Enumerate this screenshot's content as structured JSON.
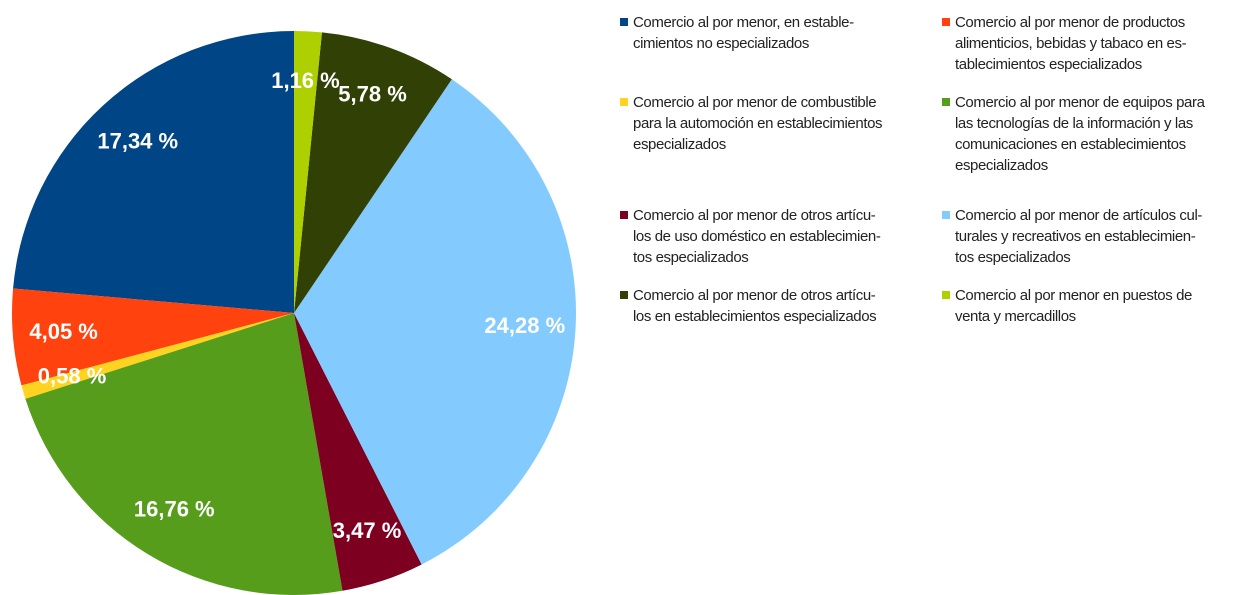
{
  "chart_data": {
    "type": "pie",
    "categories": [
      "Comercio al por menor, en estable-\ncimientos no especializados",
      "Comercio al por menor de productos\nalimenticios, bebidas y tabaco en es-\ntablecimientos especializados",
      "Comercio al por menor de combustible\npara la automoción en establecimientos\nespecializados",
      "Comercio al por menor de equipos para\nlas tecnologías de la información y las\ncomunicaciones en establecimientos\nespecializados",
      "Comercio al por menor de otros artícu-\nlos de uso doméstico en establecimien-\ntos especializados",
      "Comercio al por menor de artículos cul-\nturales y recreativos en establecimien-\ntos especializados",
      "Comercio al por menor de otros artícu-\nlos en establecimientos especializados",
      "Comercio al por menor en puestos de\nventa y mercadillos"
    ],
    "values": [
      17.34,
      4.05,
      0.58,
      16.76,
      3.47,
      24.28,
      5.78,
      1.16
    ],
    "value_labels": [
      "17,34 %",
      "4,05 %",
      "0,58 %",
      "16,76 %",
      "3,47 %",
      "24,28 %",
      "5,78 %",
      "1,16 %"
    ],
    "colors": [
      "#004586",
      "#ff420e",
      "#ffd320",
      "#579d1c",
      "#7e0021",
      "#83caff",
      "#314004",
      "#aecf00"
    ],
    "legend": "right"
  }
}
